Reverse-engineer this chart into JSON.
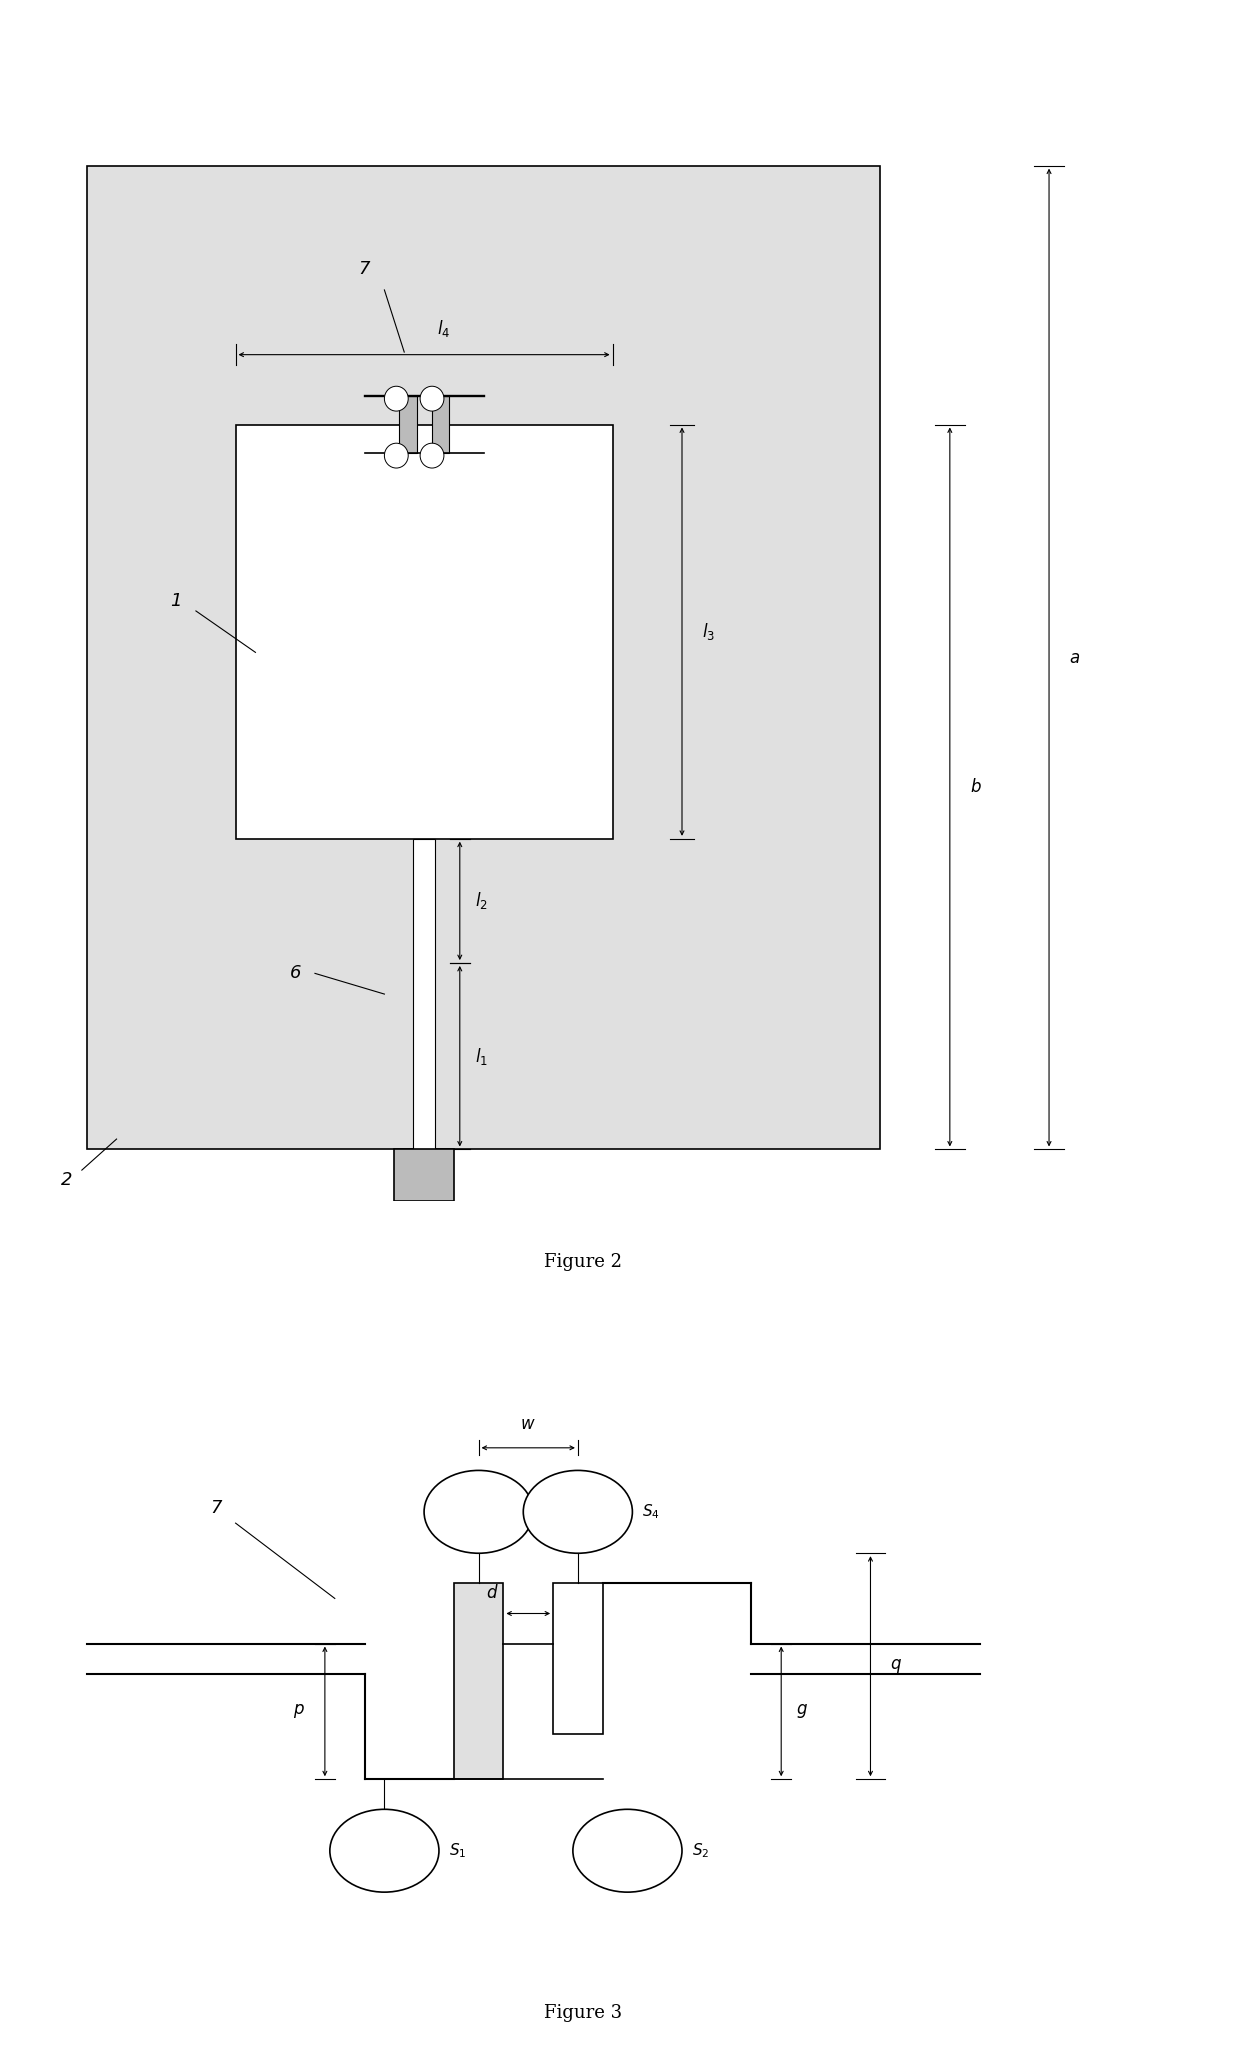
{
  "fig_width": 12.4,
  "fig_height": 20.71,
  "bg_color": "#ffffff",
  "line_color": "#000000",
  "gray_fill": "#bbbbbb",
  "light_gray": "#e0e0e0",
  "fig2_caption": "Figure 2",
  "fig3_caption": "Figure 3",
  "label_fontsize": 12,
  "caption_fontsize": 13,
  "number_fontsize": 13,
  "lw_main": 1.2,
  "lw_thin": 0.8,
  "lw_feed": 1.5
}
